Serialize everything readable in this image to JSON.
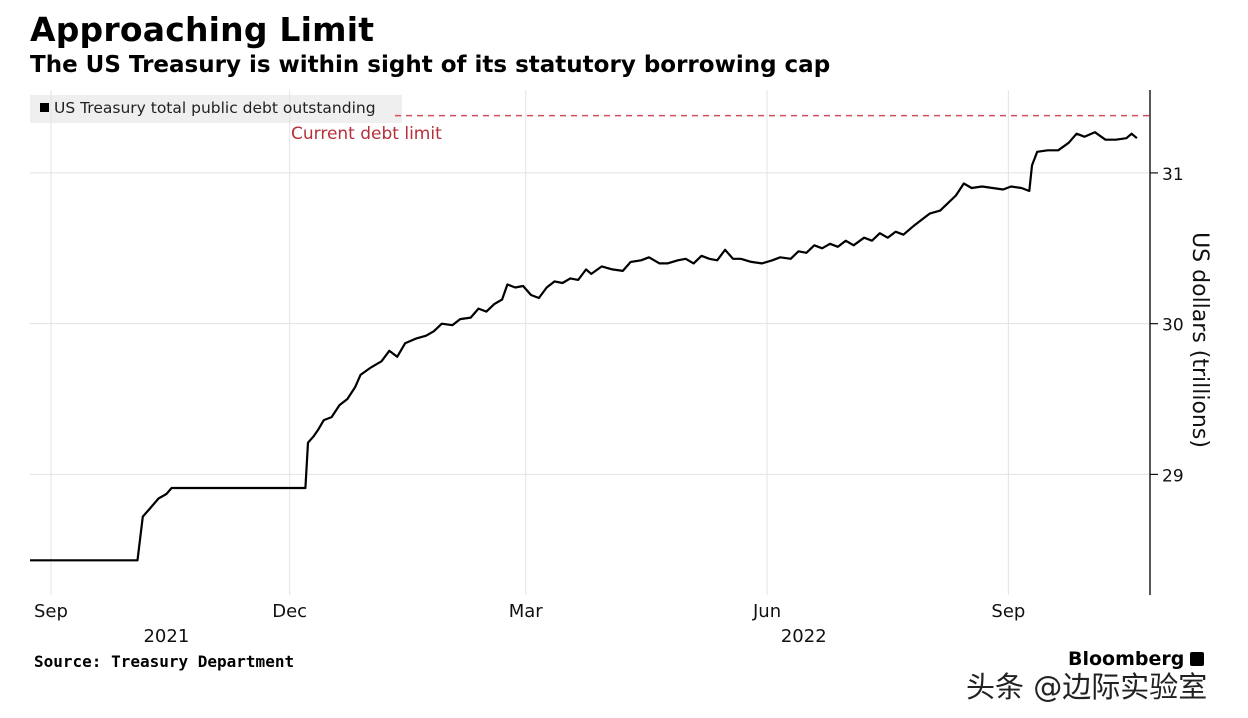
{
  "header": {
    "title": "Approaching Limit",
    "subtitle": "The US Treasury is within sight of its statutory borrowing cap"
  },
  "chart_data": {
    "type": "line",
    "title": "Approaching Limit",
    "subtitle": "The US Treasury is within sight of its statutory borrowing cap",
    "ylabel": "US dollars (trillions)",
    "y_axis_position": "right",
    "ylim": [
      28.2,
      31.55
    ],
    "yticks": [
      29,
      30,
      31
    ],
    "x_tick_labels": [
      {
        "label": "Sep",
        "date": "2021-09-01"
      },
      {
        "label": "Dec",
        "date": "2021-12-01"
      },
      {
        "label": "Mar",
        "date": "2022-03-01"
      },
      {
        "label": "Jun",
        "date": "2022-06-01"
      },
      {
        "label": "Sep",
        "date": "2022-09-01"
      }
    ],
    "year_labels": [
      {
        "label": "2021",
        "date": "2021-10-15"
      },
      {
        "label": "2022",
        "date": "2022-06-15"
      }
    ],
    "xlim": [
      "2021-08-24",
      "2022-10-25"
    ],
    "grid": true,
    "legend_placement": "top-left",
    "reference_line": {
      "label": "Current debt limit",
      "value": 31.38,
      "color": "#c0392b",
      "style": "dashed"
    },
    "series": [
      {
        "name": "US Treasury total public debt outstanding",
        "color": "#000000",
        "points": [
          [
            "2021-08-24",
            28.43
          ],
          [
            "2021-10-04",
            28.43
          ],
          [
            "2021-10-06",
            28.72
          ],
          [
            "2021-10-09",
            28.78
          ],
          [
            "2021-10-12",
            28.84
          ],
          [
            "2021-10-15",
            28.87
          ],
          [
            "2021-10-17",
            28.91
          ],
          [
            "2021-11-01",
            28.91
          ],
          [
            "2021-12-07",
            28.91
          ],
          [
            "2021-12-08",
            29.21
          ],
          [
            "2021-12-10",
            29.25
          ],
          [
            "2021-12-12",
            29.3
          ],
          [
            "2021-12-14",
            29.36
          ],
          [
            "2021-12-17",
            29.38
          ],
          [
            "2021-12-20",
            29.46
          ],
          [
            "2021-12-23",
            29.5
          ],
          [
            "2021-12-26",
            29.58
          ],
          [
            "2021-12-28",
            29.66
          ],
          [
            "2022-01-01",
            29.71
          ],
          [
            "2022-01-05",
            29.75
          ],
          [
            "2022-01-08",
            29.82
          ],
          [
            "2022-01-11",
            29.78
          ],
          [
            "2022-01-14",
            29.87
          ],
          [
            "2022-01-18",
            29.9
          ],
          [
            "2022-01-22",
            29.92
          ],
          [
            "2022-01-25",
            29.95
          ],
          [
            "2022-01-28",
            30.0
          ],
          [
            "2022-02-01",
            29.99
          ],
          [
            "2022-02-04",
            30.03
          ],
          [
            "2022-02-08",
            30.04
          ],
          [
            "2022-02-11",
            30.1
          ],
          [
            "2022-02-14",
            30.08
          ],
          [
            "2022-02-17",
            30.13
          ],
          [
            "2022-02-20",
            30.16
          ],
          [
            "2022-02-22",
            30.26
          ],
          [
            "2022-02-25",
            30.24
          ],
          [
            "2022-02-28",
            30.25
          ],
          [
            "2022-03-03",
            30.19
          ],
          [
            "2022-03-06",
            30.17
          ],
          [
            "2022-03-09",
            30.24
          ],
          [
            "2022-03-12",
            30.28
          ],
          [
            "2022-03-15",
            30.27
          ],
          [
            "2022-03-18",
            30.3
          ],
          [
            "2022-03-21",
            30.29
          ],
          [
            "2022-03-24",
            30.36
          ],
          [
            "2022-03-26",
            30.33
          ],
          [
            "2022-03-30",
            30.38
          ],
          [
            "2022-04-03",
            30.36
          ],
          [
            "2022-04-07",
            30.35
          ],
          [
            "2022-04-10",
            30.41
          ],
          [
            "2022-04-14",
            30.42
          ],
          [
            "2022-04-17",
            30.44
          ],
          [
            "2022-04-21",
            30.4
          ],
          [
            "2022-04-24",
            30.4
          ],
          [
            "2022-04-28",
            30.42
          ],
          [
            "2022-05-01",
            30.43
          ],
          [
            "2022-05-04",
            30.4
          ],
          [
            "2022-05-07",
            30.45
          ],
          [
            "2022-05-10",
            30.43
          ],
          [
            "2022-05-13",
            30.42
          ],
          [
            "2022-05-16",
            30.49
          ],
          [
            "2022-05-19",
            30.43
          ],
          [
            "2022-05-22",
            30.43
          ],
          [
            "2022-05-26",
            30.41
          ],
          [
            "2022-05-30",
            30.4
          ],
          [
            "2022-06-03",
            30.42
          ],
          [
            "2022-06-06",
            30.44
          ],
          [
            "2022-06-10",
            30.43
          ],
          [
            "2022-06-13",
            30.48
          ],
          [
            "2022-06-16",
            30.47
          ],
          [
            "2022-06-19",
            30.52
          ],
          [
            "2022-06-22",
            30.5
          ],
          [
            "2022-06-25",
            30.53
          ],
          [
            "2022-06-28",
            30.51
          ],
          [
            "2022-07-01",
            30.55
          ],
          [
            "2022-07-04",
            30.52
          ],
          [
            "2022-07-08",
            30.57
          ],
          [
            "2022-07-11",
            30.55
          ],
          [
            "2022-07-14",
            30.6
          ],
          [
            "2022-07-17",
            30.57
          ],
          [
            "2022-07-20",
            30.61
          ],
          [
            "2022-07-23",
            30.59
          ],
          [
            "2022-07-27",
            30.65
          ],
          [
            "2022-07-30",
            30.69
          ],
          [
            "2022-08-02",
            30.73
          ],
          [
            "2022-08-06",
            30.75
          ],
          [
            "2022-08-09",
            30.8
          ],
          [
            "2022-08-12",
            30.85
          ],
          [
            "2022-08-15",
            30.93
          ],
          [
            "2022-08-18",
            30.9
          ],
          [
            "2022-08-22",
            30.91
          ],
          [
            "2022-08-26",
            30.9
          ],
          [
            "2022-08-30",
            30.89
          ],
          [
            "2022-09-02",
            30.91
          ],
          [
            "2022-09-06",
            30.9
          ],
          [
            "2022-09-09",
            30.88
          ],
          [
            "2022-09-10",
            31.05
          ],
          [
            "2022-09-12",
            31.14
          ],
          [
            "2022-09-16",
            31.15
          ],
          [
            "2022-09-20",
            31.15
          ],
          [
            "2022-09-24",
            31.2
          ],
          [
            "2022-09-27",
            31.26
          ],
          [
            "2022-09-30",
            31.24
          ],
          [
            "2022-10-04",
            31.27
          ],
          [
            "2022-10-08",
            31.22
          ],
          [
            "2022-10-12",
            31.22
          ],
          [
            "2022-10-16",
            31.23
          ],
          [
            "2022-10-18",
            31.26
          ],
          [
            "2022-10-20",
            31.23
          ]
        ]
      }
    ]
  },
  "footer": {
    "source": "Source: Treasury Department",
    "brand": "Bloomberg",
    "watermark": "头条 @边际实验室"
  }
}
